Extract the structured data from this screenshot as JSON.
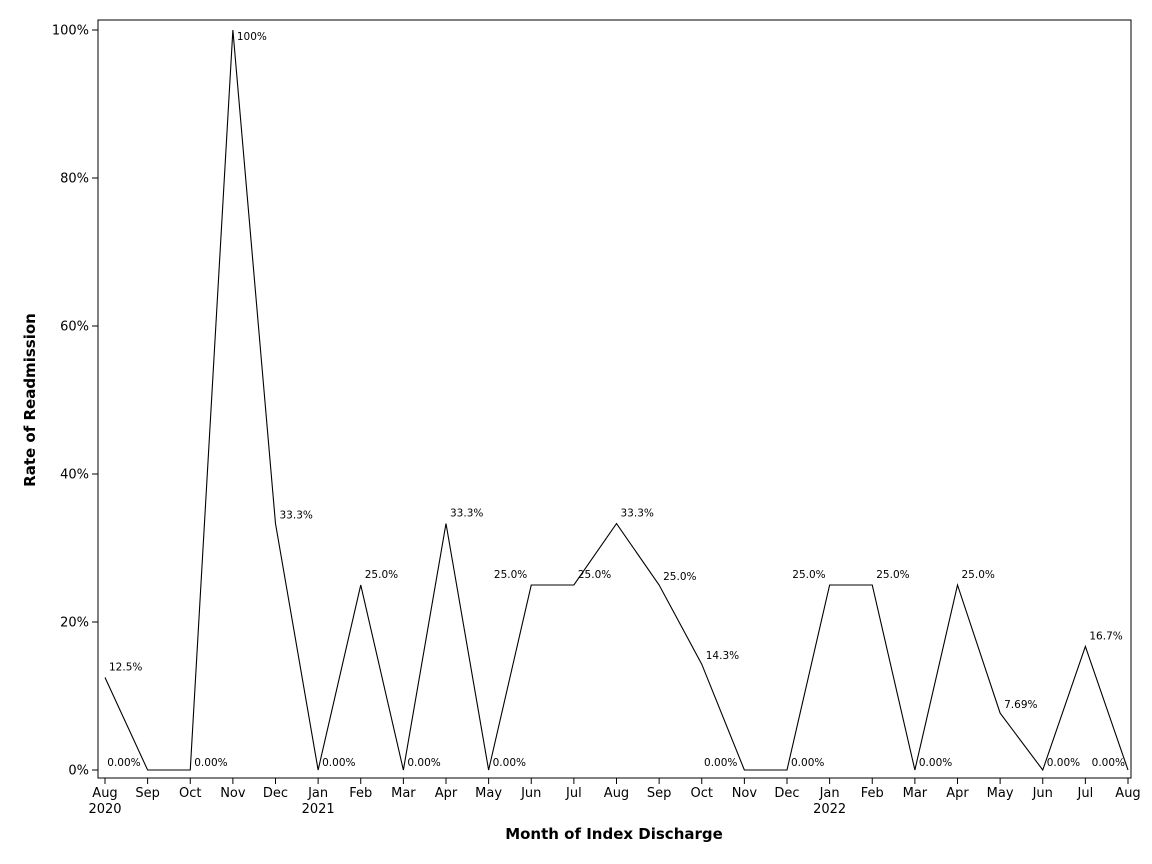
{
  "chart_data": {
    "type": "line",
    "title": "",
    "xlabel": "Month of Index Discharge",
    "ylabel": "Rate of Readmission",
    "ylim": [
      0,
      100
    ],
    "y_ticks": [
      0,
      20,
      40,
      60,
      80,
      100
    ],
    "y_tick_labels": [
      "0%",
      "20%",
      "40%",
      "60%",
      "80%",
      "100%"
    ],
    "grid": false,
    "legend": "none",
    "line_color": "#000000",
    "categories": [
      "Aug",
      "Sep",
      "Oct",
      "Nov",
      "Dec",
      "Jan",
      "Feb",
      "Mar",
      "Apr",
      "May",
      "Jun",
      "Jul",
      "Aug",
      "Sep",
      "Oct",
      "Nov",
      "Dec",
      "Jan",
      "Feb",
      "Mar",
      "Apr",
      "May",
      "Jun",
      "Jul",
      "Aug"
    ],
    "year_labels": [
      {
        "index": 0,
        "label": "2020"
      },
      {
        "index": 5,
        "label": "2021"
      },
      {
        "index": 17,
        "label": "2022"
      }
    ],
    "values": [
      12.5,
      0,
      0,
      100,
      33.3,
      0,
      25,
      0,
      33.3,
      0,
      25,
      25,
      33.3,
      25,
      14.3,
      0,
      0,
      25,
      25,
      0,
      25,
      7.69,
      0,
      16.7,
      0
    ],
    "value_labels": [
      "12.5%",
      "0.00%",
      "0.00%",
      "100%",
      "33.3%",
      "0.00%",
      "25.0%",
      "0.00%",
      "33.3%",
      "0.00%",
      "25.0%",
      "25.0%",
      "33.3%",
      "25.0%",
      "14.3%",
      "0.00%",
      "0.00%",
      "25.0%",
      "25.0%",
      "0.00%",
      "25.0%",
      "7.69%",
      "0.00%",
      "16.7%",
      "0.00%"
    ]
  }
}
